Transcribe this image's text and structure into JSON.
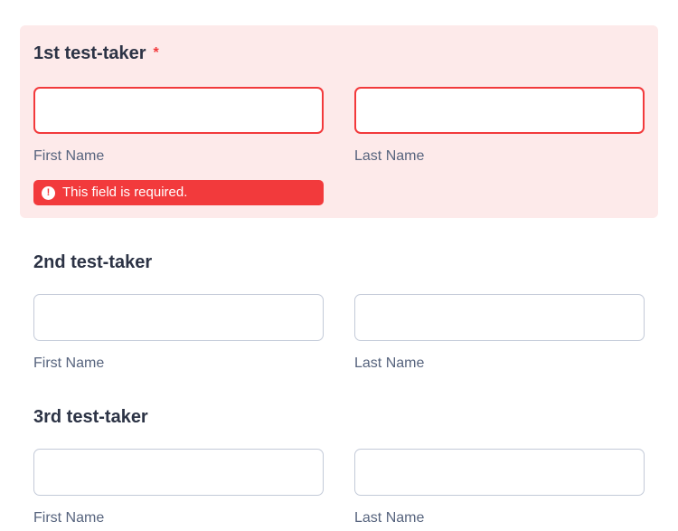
{
  "colors": {
    "error_red": "#f23a3c",
    "error_section_bg": "#fdeaea",
    "heading_color": "#2c3345",
    "sublabel_color": "#57647e",
    "input_border": "#c3cad8",
    "badge_text_color": "#ffffff"
  },
  "icons": {
    "error_icon_name": "exclamation-circle-icon",
    "error_icon_glyph": "!"
  },
  "sections": [
    {
      "title": "1st test-taker",
      "required_marker": "*",
      "has_error": true,
      "error_message": "This field is required.",
      "fields": [
        {
          "label": "First Name",
          "value": "",
          "state": "error"
        },
        {
          "label": "Last Name",
          "value": "",
          "state": "error"
        }
      ]
    },
    {
      "title": "2nd test-taker",
      "has_error": false,
      "fields": [
        {
          "label": "First Name",
          "value": "",
          "state": "normal"
        },
        {
          "label": "Last Name",
          "value": "",
          "state": "normal"
        }
      ]
    },
    {
      "title": "3rd test-taker",
      "has_error": false,
      "fields": [
        {
          "label": "First Name",
          "value": "",
          "state": "normal"
        },
        {
          "label": "Last Name",
          "value": "",
          "state": "normal"
        }
      ]
    }
  ]
}
